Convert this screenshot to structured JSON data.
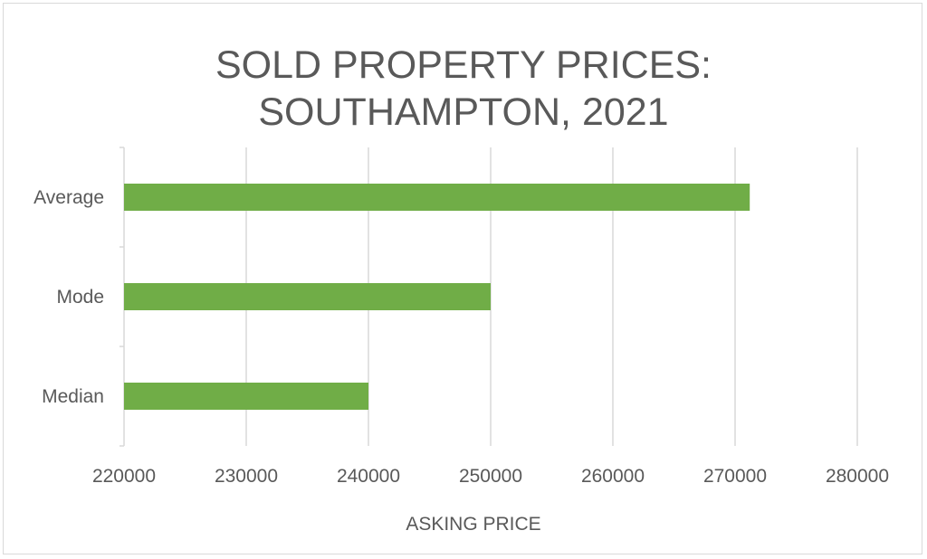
{
  "chart_data": {
    "type": "bar",
    "orientation": "horizontal",
    "title": [
      "SOLD PROPERTY PRICES:",
      "SOUTHAMPTON, 2021"
    ],
    "categories": [
      "Average",
      "Mode",
      "Median"
    ],
    "values": [
      271200,
      250000,
      240000
    ],
    "xlabel": "ASKING PRICE",
    "ylabel": "",
    "xlim": [
      220000,
      280000
    ],
    "xticks": [
      "220000",
      "230000",
      "240000",
      "250000",
      "260000",
      "270000",
      "280000"
    ],
    "grid": "vertical",
    "legend": "none",
    "bar_color": "#70ad47",
    "grid_color": "#d9d9d9",
    "text_color": "#595959"
  }
}
